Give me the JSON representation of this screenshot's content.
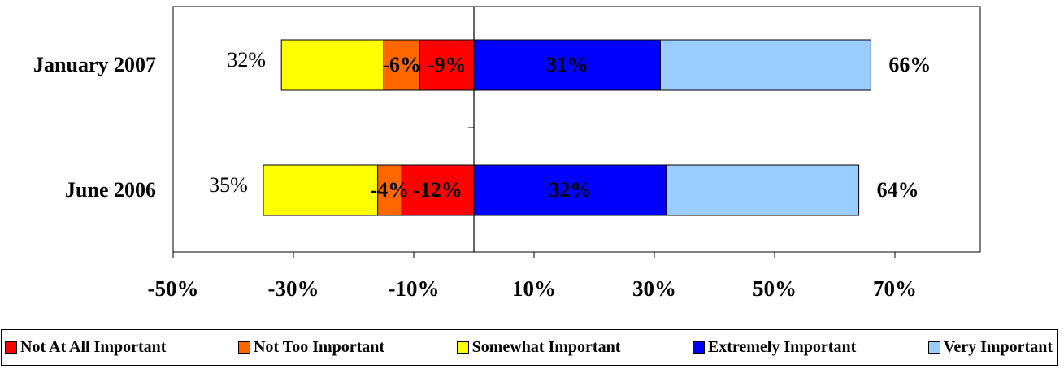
{
  "chart_data": {
    "type": "bar",
    "orientation": "horizontal",
    "stacking": "diverging",
    "categories": [
      "January 2007",
      "June 2006"
    ],
    "series": [
      {
        "name": "Not At All Important",
        "color": "#ff0000",
        "side": "negative",
        "values": [
          -9,
          -12
        ],
        "labels": [
          "-9%",
          "-12%"
        ]
      },
      {
        "name": "Not Too Important",
        "color": "#ff6600",
        "side": "negative",
        "values": [
          -6,
          -4
        ],
        "labels": [
          "-6%",
          "-4%"
        ]
      },
      {
        "name": "Somewhat Important",
        "color": "#ffff00",
        "side": "negative",
        "values": [
          -17,
          -19
        ],
        "labels": [
          "",
          ""
        ]
      },
      {
        "name": "Extremely Important",
        "color": "#0000ff",
        "side": "positive",
        "values": [
          31,
          32
        ],
        "labels": [
          "31%",
          "32%"
        ]
      },
      {
        "name": "Very Important",
        "color": "#99ccff",
        "side": "positive",
        "values": [
          35,
          32
        ],
        "labels": [
          "",
          ""
        ]
      }
    ],
    "negative_totals": [
      "32%",
      "35%"
    ],
    "positive_totals": [
      "66%",
      "64%"
    ],
    "xlim": [
      -50,
      85
    ],
    "xticks": [
      -50,
      -30,
      -10,
      10,
      30,
      50,
      70
    ],
    "xtick_labels": [
      "-50%",
      "-30%",
      "-10%",
      "10%",
      "30%",
      "50%",
      "70%"
    ],
    "title": "",
    "xlabel": "",
    "ylabel": "",
    "grid": false,
    "legend_position": "bottom"
  }
}
